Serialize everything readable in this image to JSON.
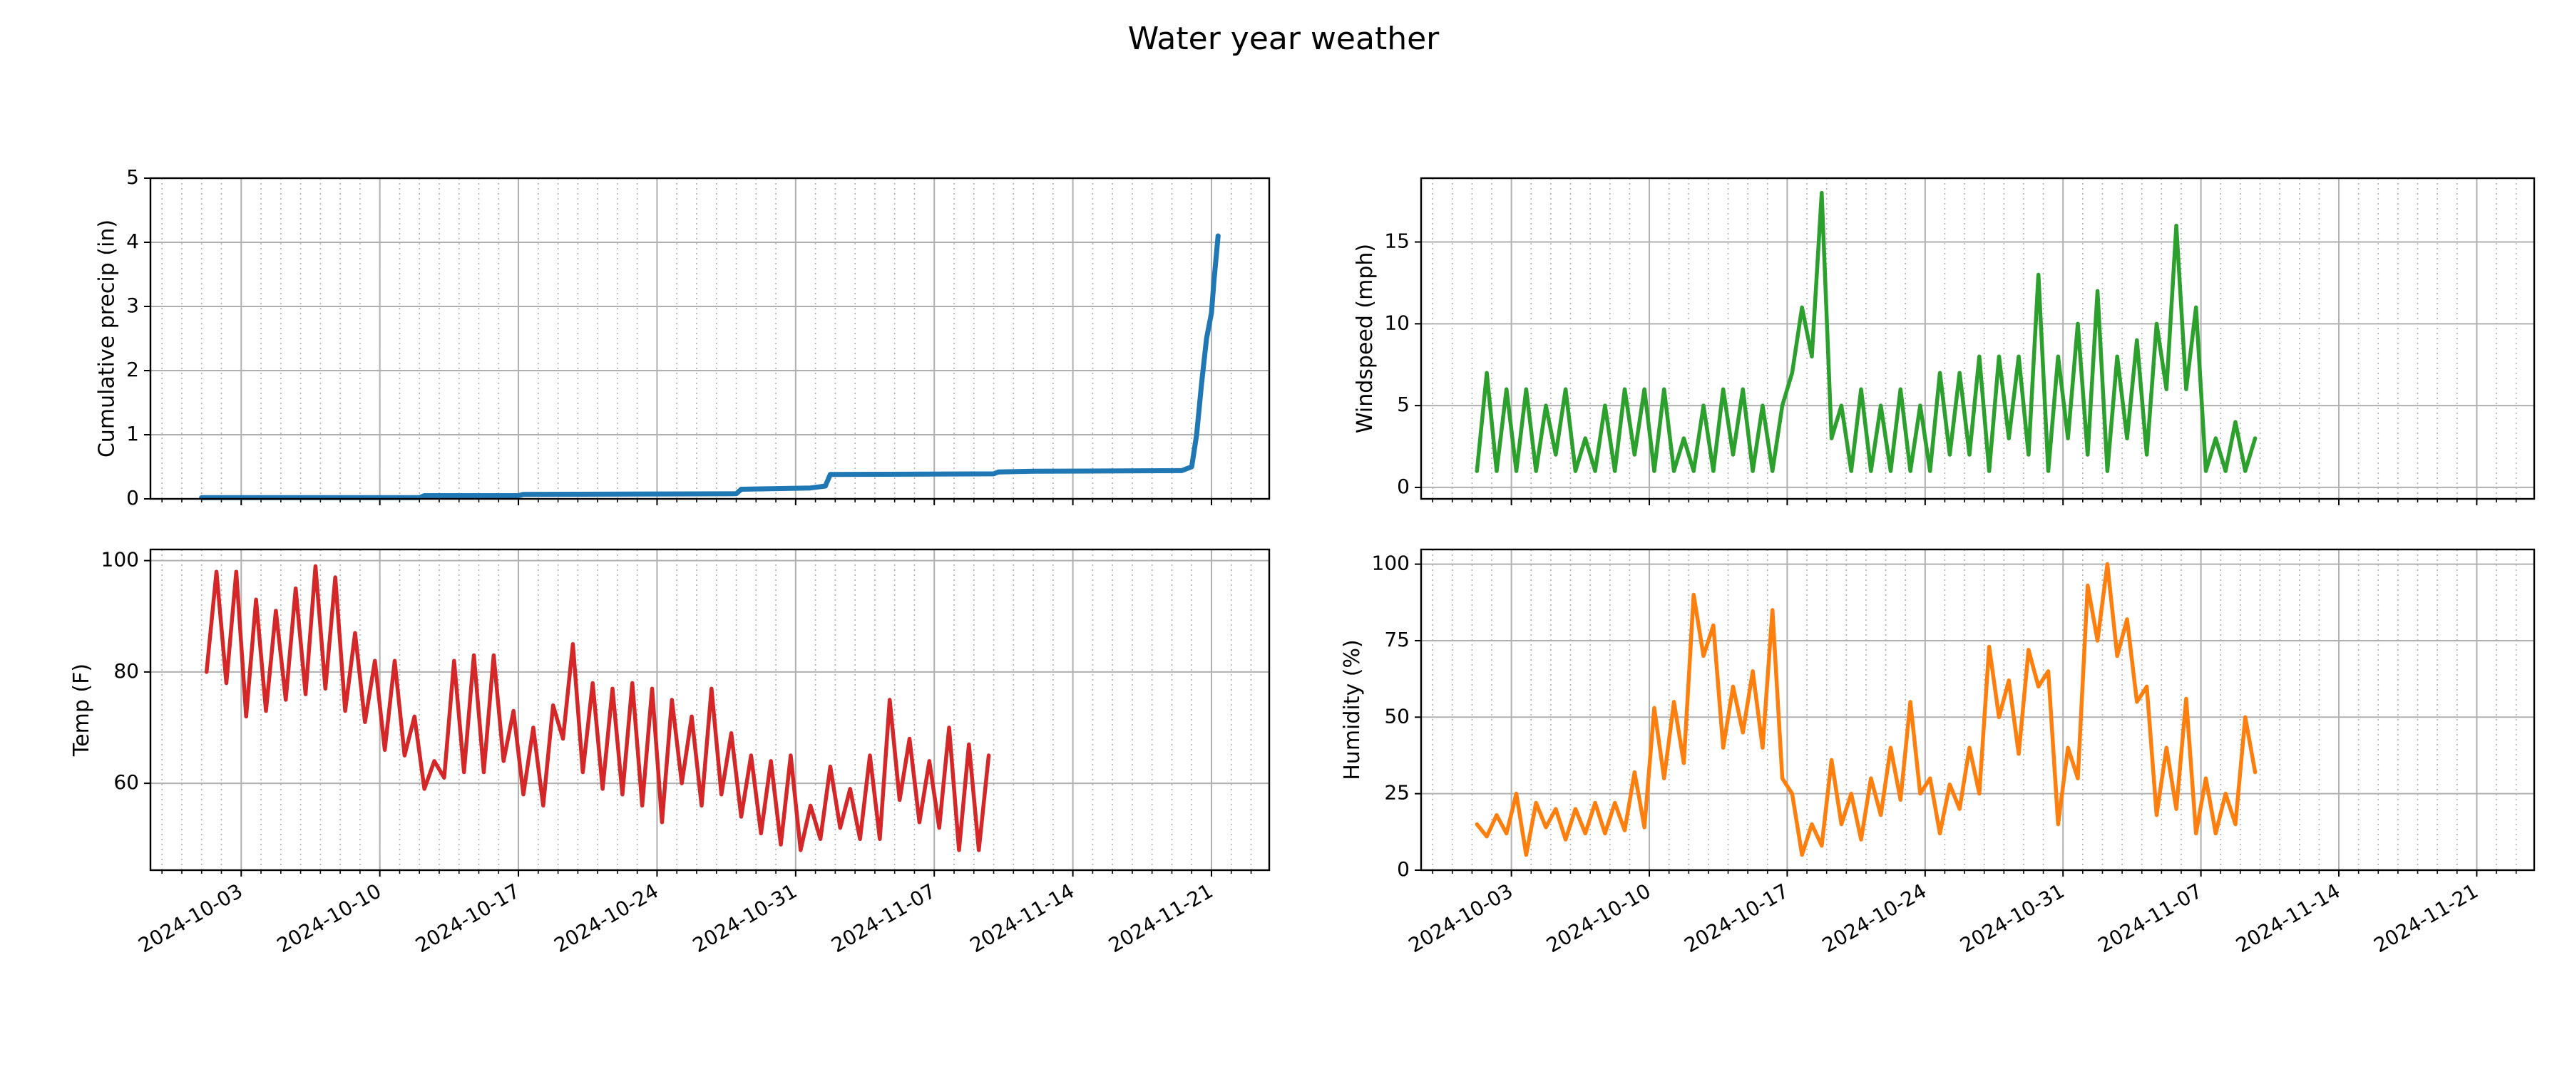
{
  "title": "Water year weather",
  "chart_data": [
    {
      "type": "line",
      "ylabel": "Cumulative precip (in)",
      "color": "#1f77b4",
      "grid": true,
      "minor_grid": true,
      "show_xticklabels": false,
      "xlim": [
        "2024-09-28 10:00",
        "2024-11-23 22:00"
      ],
      "xticks": [
        "2024-10-03",
        "2024-10-10",
        "2024-10-17",
        "2024-10-24",
        "2024-10-31",
        "2024-11-07",
        "2024-11-14",
        "2024-11-21"
      ],
      "ylim": [
        0,
        5
      ],
      "yticks": [
        0,
        1,
        2,
        3,
        4,
        5
      ],
      "x": [
        "2024-10-01 00:00",
        "2024-10-12 00:00",
        "2024-10-12 06:00",
        "2024-10-17 00:00",
        "2024-10-17 06:00",
        "2024-10-28 00:00",
        "2024-10-28 06:00",
        "2024-10-31 18:00",
        "2024-11-01 12:00",
        "2024-11-01 18:00",
        "2024-11-10 00:00",
        "2024-11-10 06:00",
        "2024-11-12 00:00",
        "2024-11-19 12:00",
        "2024-11-20 00:00",
        "2024-11-20 06:00",
        "2024-11-20 12:00",
        "2024-11-20 18:00",
        "2024-11-21 00:00",
        "2024-11-21 03:00",
        "2024-11-21 08:00"
      ],
      "values": [
        0.02,
        0.02,
        0.05,
        0.05,
        0.07,
        0.08,
        0.15,
        0.17,
        0.2,
        0.38,
        0.39,
        0.42,
        0.43,
        0.44,
        0.5,
        1.0,
        1.8,
        2.5,
        2.9,
        3.4,
        4.1
      ]
    },
    {
      "type": "line",
      "ylabel": "Windspeed (mph)",
      "color": "#2ca02c",
      "grid": true,
      "minor_grid": true,
      "show_xticklabels": false,
      "xlim": [
        "2024-09-28 10:00",
        "2024-11-23 22:00"
      ],
      "xticks": [
        "2024-10-03",
        "2024-10-10",
        "2024-10-17",
        "2024-10-24",
        "2024-10-31",
        "2024-11-07",
        "2024-11-14",
        "2024-11-21"
      ],
      "ylim": [
        -0.7,
        18.9
      ],
      "yticks": [
        0,
        5,
        10,
        15
      ],
      "x": [
        "2024-10-01 06:00",
        "2024-10-01 18:00",
        "2024-10-02 06:00",
        "2024-10-02 18:00",
        "2024-10-03 06:00",
        "2024-10-03 18:00",
        "2024-10-04 06:00",
        "2024-10-04 18:00",
        "2024-10-05 06:00",
        "2024-10-05 18:00",
        "2024-10-06 06:00",
        "2024-10-06 18:00",
        "2024-10-07 06:00",
        "2024-10-07 18:00",
        "2024-10-08 06:00",
        "2024-10-08 18:00",
        "2024-10-09 06:00",
        "2024-10-09 18:00",
        "2024-10-10 06:00",
        "2024-10-10 18:00",
        "2024-10-11 06:00",
        "2024-10-11 18:00",
        "2024-10-12 06:00",
        "2024-10-12 18:00",
        "2024-10-13 06:00",
        "2024-10-13 18:00",
        "2024-10-14 06:00",
        "2024-10-14 18:00",
        "2024-10-15 06:00",
        "2024-10-15 18:00",
        "2024-10-16 06:00",
        "2024-10-16 18:00",
        "2024-10-17 06:00",
        "2024-10-17 18:00",
        "2024-10-18 06:00",
        "2024-10-18 18:00",
        "2024-10-19 06:00",
        "2024-10-19 18:00",
        "2024-10-20 06:00",
        "2024-10-20 18:00",
        "2024-10-21 06:00",
        "2024-10-21 18:00",
        "2024-10-22 06:00",
        "2024-10-22 18:00",
        "2024-10-23 06:00",
        "2024-10-23 18:00",
        "2024-10-24 06:00",
        "2024-10-24 18:00",
        "2024-10-25 06:00",
        "2024-10-25 18:00",
        "2024-10-26 06:00",
        "2024-10-26 18:00",
        "2024-10-27 06:00",
        "2024-10-27 18:00",
        "2024-10-28 06:00",
        "2024-10-28 18:00",
        "2024-10-29 06:00",
        "2024-10-29 18:00",
        "2024-10-30 06:00",
        "2024-10-30 18:00",
        "2024-10-31 06:00",
        "2024-10-31 18:00",
        "2024-11-01 06:00",
        "2024-11-01 18:00",
        "2024-11-02 06:00",
        "2024-11-02 18:00",
        "2024-11-03 06:00",
        "2024-11-03 18:00",
        "2024-11-04 06:00",
        "2024-11-04 18:00",
        "2024-11-05 06:00",
        "2024-11-05 18:00",
        "2024-11-06 06:00",
        "2024-11-06 18:00",
        "2024-11-07 06:00",
        "2024-11-07 18:00",
        "2024-11-08 06:00",
        "2024-11-08 18:00",
        "2024-11-09 06:00",
        "2024-11-09 18:00"
      ],
      "values": [
        1,
        7,
        1,
        6,
        1,
        6,
        1,
        5,
        2,
        6,
        1,
        3,
        1,
        5,
        1,
        6,
        2,
        6,
        1,
        6,
        1,
        3,
        1,
        5,
        1,
        6,
        2,
        6,
        1,
        5,
        1,
        5,
        7,
        11,
        8,
        18,
        3,
        5,
        1,
        6,
        1,
        5,
        1,
        6,
        1,
        5,
        1,
        7,
        2,
        7,
        2,
        8,
        1,
        8,
        3,
        8,
        2,
        13,
        1,
        8,
        3,
        10,
        2,
        12,
        1,
        8,
        3,
        9,
        2,
        10,
        6,
        16,
        6,
        11,
        1,
        3,
        1,
        4,
        1,
        3
      ]
    },
    {
      "type": "line",
      "ylabel": "Temp (F)",
      "color": "#d62728",
      "grid": true,
      "minor_grid": true,
      "show_xticklabels": true,
      "xlim": [
        "2024-09-28 10:00",
        "2024-11-23 22:00"
      ],
      "xticks": [
        "2024-10-03",
        "2024-10-10",
        "2024-10-17",
        "2024-10-24",
        "2024-10-31",
        "2024-11-07",
        "2024-11-14",
        "2024-11-21"
      ],
      "ylim": [
        44.4,
        102
      ],
      "yticks": [
        60,
        80,
        100
      ],
      "x": [
        "2024-10-01 06:00",
        "2024-10-01 18:00",
        "2024-10-02 06:00",
        "2024-10-02 18:00",
        "2024-10-03 06:00",
        "2024-10-03 18:00",
        "2024-10-04 06:00",
        "2024-10-04 18:00",
        "2024-10-05 06:00",
        "2024-10-05 18:00",
        "2024-10-06 06:00",
        "2024-10-06 18:00",
        "2024-10-07 06:00",
        "2024-10-07 18:00",
        "2024-10-08 06:00",
        "2024-10-08 18:00",
        "2024-10-09 06:00",
        "2024-10-09 18:00",
        "2024-10-10 06:00",
        "2024-10-10 18:00",
        "2024-10-11 06:00",
        "2024-10-11 18:00",
        "2024-10-12 06:00",
        "2024-10-12 18:00",
        "2024-10-13 06:00",
        "2024-10-13 18:00",
        "2024-10-14 06:00",
        "2024-10-14 18:00",
        "2024-10-15 06:00",
        "2024-10-15 18:00",
        "2024-10-16 06:00",
        "2024-10-16 18:00",
        "2024-10-17 06:00",
        "2024-10-17 18:00",
        "2024-10-18 06:00",
        "2024-10-18 18:00",
        "2024-10-19 06:00",
        "2024-10-19 18:00",
        "2024-10-20 06:00",
        "2024-10-20 18:00",
        "2024-10-21 06:00",
        "2024-10-21 18:00",
        "2024-10-22 06:00",
        "2024-10-22 18:00",
        "2024-10-23 06:00",
        "2024-10-23 18:00",
        "2024-10-24 06:00",
        "2024-10-24 18:00",
        "2024-10-25 06:00",
        "2024-10-25 18:00",
        "2024-10-26 06:00",
        "2024-10-26 18:00",
        "2024-10-27 06:00",
        "2024-10-27 18:00",
        "2024-10-28 06:00",
        "2024-10-28 18:00",
        "2024-10-29 06:00",
        "2024-10-29 18:00",
        "2024-10-30 06:00",
        "2024-10-30 18:00",
        "2024-10-31 06:00",
        "2024-10-31 18:00",
        "2024-11-01 06:00",
        "2024-11-01 18:00",
        "2024-11-02 06:00",
        "2024-11-02 18:00",
        "2024-11-03 06:00",
        "2024-11-03 18:00",
        "2024-11-04 06:00",
        "2024-11-04 18:00",
        "2024-11-05 06:00",
        "2024-11-05 18:00",
        "2024-11-06 06:00",
        "2024-11-06 18:00",
        "2024-11-07 06:00",
        "2024-11-07 18:00",
        "2024-11-08 06:00",
        "2024-11-08 18:00",
        "2024-11-09 06:00",
        "2024-11-09 18:00"
      ],
      "values": [
        80,
        98,
        78,
        98,
        72,
        93,
        73,
        91,
        75,
        95,
        76,
        99,
        77,
        97,
        73,
        87,
        71,
        82,
        66,
        82,
        65,
        72,
        59,
        64,
        61,
        82,
        62,
        83,
        62,
        83,
        64,
        73,
        58,
        70,
        56,
        74,
        68,
        85,
        62,
        78,
        59,
        77,
        58,
        78,
        56,
        77,
        53,
        75,
        60,
        72,
        56,
        77,
        58,
        69,
        54,
        65,
        51,
        64,
        49,
        65,
        48,
        56,
        50,
        63,
        52,
        59,
        50,
        65,
        50,
        75,
        57,
        68,
        53,
        64,
        52,
        70,
        48,
        67,
        48,
        65
      ]
    },
    {
      "type": "line",
      "ylabel": "Humidity (%)",
      "color": "#ff7f0e",
      "grid": true,
      "minor_grid": true,
      "show_xticklabels": true,
      "xlim": [
        "2024-09-28 10:00",
        "2024-11-23 22:00"
      ],
      "xticks": [
        "2024-10-03",
        "2024-10-10",
        "2024-10-17",
        "2024-10-24",
        "2024-10-31",
        "2024-11-07",
        "2024-11-14",
        "2024-11-21"
      ],
      "ylim": [
        0,
        104.8
      ],
      "yticks": [
        0,
        25,
        50,
        75,
        100
      ],
      "x": [
        "2024-10-01 06:00",
        "2024-10-01 18:00",
        "2024-10-02 06:00",
        "2024-10-02 18:00",
        "2024-10-03 06:00",
        "2024-10-03 18:00",
        "2024-10-04 06:00",
        "2024-10-04 18:00",
        "2024-10-05 06:00",
        "2024-10-05 18:00",
        "2024-10-06 06:00",
        "2024-10-06 18:00",
        "2024-10-07 06:00",
        "2024-10-07 18:00",
        "2024-10-08 06:00",
        "2024-10-08 18:00",
        "2024-10-09 06:00",
        "2024-10-09 18:00",
        "2024-10-10 06:00",
        "2024-10-10 18:00",
        "2024-10-11 06:00",
        "2024-10-11 18:00",
        "2024-10-12 06:00",
        "2024-10-12 18:00",
        "2024-10-13 06:00",
        "2024-10-13 18:00",
        "2024-10-14 06:00",
        "2024-10-14 18:00",
        "2024-10-15 06:00",
        "2024-10-15 18:00",
        "2024-10-16 06:00",
        "2024-10-16 18:00",
        "2024-10-17 06:00",
        "2024-10-17 18:00",
        "2024-10-18 06:00",
        "2024-10-18 18:00",
        "2024-10-19 06:00",
        "2024-10-19 18:00",
        "2024-10-20 06:00",
        "2024-10-20 18:00",
        "2024-10-21 06:00",
        "2024-10-21 18:00",
        "2024-10-22 06:00",
        "2024-10-22 18:00",
        "2024-10-23 06:00",
        "2024-10-23 18:00",
        "2024-10-24 06:00",
        "2024-10-24 18:00",
        "2024-10-25 06:00",
        "2024-10-25 18:00",
        "2024-10-26 06:00",
        "2024-10-26 18:00",
        "2024-10-27 06:00",
        "2024-10-27 18:00",
        "2024-10-28 06:00",
        "2024-10-28 18:00",
        "2024-10-29 06:00",
        "2024-10-29 18:00",
        "2024-10-30 06:00",
        "2024-10-30 18:00",
        "2024-10-31 06:00",
        "2024-10-31 18:00",
        "2024-11-01 06:00",
        "2024-11-01 18:00",
        "2024-11-02 06:00",
        "2024-11-02 18:00",
        "2024-11-03 06:00",
        "2024-11-03 18:00",
        "2024-11-04 06:00",
        "2024-11-04 18:00",
        "2024-11-05 06:00",
        "2024-11-05 18:00",
        "2024-11-06 06:00",
        "2024-11-06 18:00",
        "2024-11-07 06:00",
        "2024-11-07 18:00",
        "2024-11-08 06:00",
        "2024-11-08 18:00",
        "2024-11-09 06:00",
        "2024-11-09 18:00"
      ],
      "values": [
        15,
        11,
        18,
        12,
        25,
        5,
        22,
        14,
        20,
        10,
        20,
        12,
        22,
        12,
        22,
        13,
        32,
        14,
        53,
        30,
        55,
        35,
        90,
        70,
        80,
        40,
        60,
        45,
        65,
        40,
        85,
        30,
        25,
        5,
        15,
        8,
        36,
        15,
        25,
        10,
        30,
        18,
        40,
        23,
        55,
        25,
        30,
        12,
        28,
        20,
        40,
        25,
        73,
        50,
        62,
        38,
        72,
        60,
        65,
        15,
        40,
        30,
        93,
        75,
        100,
        70,
        82,
        55,
        60,
        18,
        40,
        20,
        56,
        12,
        30,
        12,
        25,
        15,
        50,
        32
      ]
    }
  ]
}
